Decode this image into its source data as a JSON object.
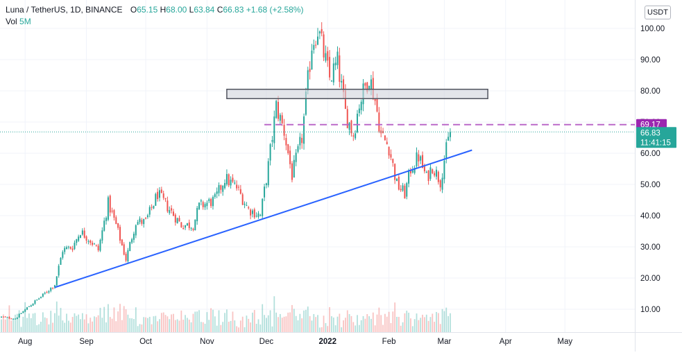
{
  "legend": {
    "symbol": "Luna / TetherUS, 1D, BINANCE",
    "open_label": "O",
    "open_value": "65.15",
    "high_label": "H",
    "high_value": "68.00",
    "low_label": "L",
    "low_value": "63.84",
    "close_label": "C",
    "close_value": "66.83",
    "change": "+1.68 (+2.58%)",
    "volume_label": "Vol",
    "volume_value": "5M"
  },
  "currency": "USDT",
  "price_axis": {
    "ticks": [
      10,
      20,
      30,
      40,
      50,
      60,
      70,
      80,
      90,
      100
    ],
    "tick_labels": [
      "10.00",
      "20.00",
      "30.00",
      "40.00",
      "50.00",
      "60.00",
      "70.00",
      "80.00",
      "90.00",
      "100.00"
    ]
  },
  "time_axis": {
    "labels": [
      "Aug",
      "Sep",
      "Oct",
      "Nov",
      "Dec",
      "2022",
      "Feb",
      "Mar",
      "Apr",
      "May"
    ]
  },
  "badges": {
    "alert_price": "69.17",
    "last_price": "66.83",
    "countdown": "11:41:15"
  },
  "colors": {
    "up": "#26a69a",
    "down": "#ef5350",
    "trendline": "#2962ff",
    "alert_line": "#ba68c8",
    "alert_badge": "#9c27b0",
    "last_badge": "#26a69a",
    "zone_fill": "#d1d4dc",
    "zone_border": "#50535e",
    "grid": "#f0f3fa"
  },
  "chart_data": {
    "type": "candlestick",
    "interval": "1D",
    "ylim": [
      2,
      112
    ],
    "grid": true,
    "price_path": [
      [
        "2021-07-20",
        7.5
      ],
      [
        "2021-07-27",
        7.0
      ],
      [
        "2021-08-03",
        11.0
      ],
      [
        "2021-08-10",
        14.5
      ],
      [
        "2021-08-16",
        18.0
      ],
      [
        "2021-08-20",
        29.0
      ],
      [
        "2021-08-25",
        30.0
      ],
      [
        "2021-08-29",
        35.0
      ],
      [
        "2021-09-03",
        32.0
      ],
      [
        "2021-09-07",
        29.0
      ],
      [
        "2021-09-12",
        44.0
      ],
      [
        "2021-09-16",
        37.0
      ],
      [
        "2021-09-21",
        26.0
      ],
      [
        "2021-09-26",
        38.0
      ],
      [
        "2021-10-01",
        38.0
      ],
      [
        "2021-10-07",
        47.0
      ],
      [
        "2021-10-13",
        42.0
      ],
      [
        "2021-10-19",
        37.0
      ],
      [
        "2021-10-25",
        37.0
      ],
      [
        "2021-10-28",
        43.0
      ],
      [
        "2021-11-05",
        45.0
      ],
      [
        "2021-11-10",
        52.0
      ],
      [
        "2021-11-16",
        49.0
      ],
      [
        "2021-11-22",
        42.0
      ],
      [
        "2021-11-28",
        40.0
      ],
      [
        "2021-12-02",
        56.0
      ],
      [
        "2021-12-06",
        75.0
      ],
      [
        "2021-12-10",
        67.0
      ],
      [
        "2021-12-14",
        53.0
      ],
      [
        "2021-12-19",
        65.0
      ],
      [
        "2021-12-24",
        95.0
      ],
      [
        "2021-12-27",
        100.0
      ],
      [
        "2022-01-02",
        84.0
      ],
      [
        "2022-01-06",
        89.0
      ],
      [
        "2022-01-10",
        73.0
      ],
      [
        "2022-01-14",
        66.0
      ],
      [
        "2022-01-17",
        76.0
      ],
      [
        "2022-01-22",
        85.0
      ],
      [
        "2022-01-25",
        77.0
      ],
      [
        "2022-01-28",
        66.0
      ],
      [
        "2022-02-01",
        62.0
      ],
      [
        "2022-02-05",
        50.0
      ],
      [
        "2022-02-09",
        47.0
      ],
      [
        "2022-02-12",
        55.0
      ],
      [
        "2022-02-16",
        59.0
      ],
      [
        "2022-02-20",
        52.0
      ],
      [
        "2022-02-23",
        56.0
      ],
      [
        "2022-02-27",
        51.0
      ],
      [
        "2022-03-01",
        58.0
      ],
      [
        "2022-03-04",
        66.8
      ]
    ],
    "last_close": 66.83,
    "alert_level": 69.17,
    "resistance_zone": {
      "from": "2021-11-11",
      "to": "2022-03-23",
      "low": 77.5,
      "high": 80.5
    },
    "trendline": {
      "from": [
        "2021-08-16",
        17.0
      ],
      "to": [
        "2022-03-15",
        61.0
      ]
    },
    "volume_max_m": 30
  }
}
